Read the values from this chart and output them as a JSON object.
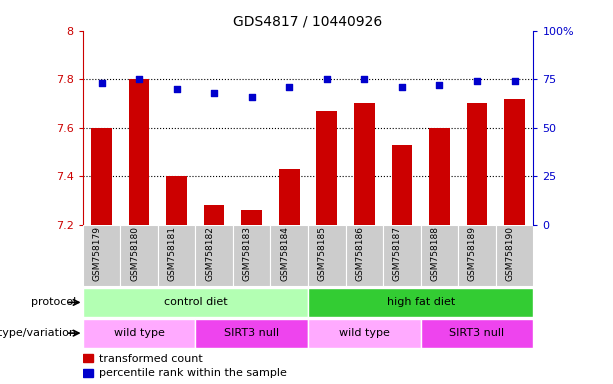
{
  "title": "GDS4817 / 10440926",
  "samples": [
    "GSM758179",
    "GSM758180",
    "GSM758181",
    "GSM758182",
    "GSM758183",
    "GSM758184",
    "GSM758185",
    "GSM758186",
    "GSM758187",
    "GSM758188",
    "GSM758189",
    "GSM758190"
  ],
  "transformed_count": [
    7.6,
    7.8,
    7.4,
    7.28,
    7.26,
    7.43,
    7.67,
    7.7,
    7.53,
    7.6,
    7.7,
    7.72
  ],
  "percentile_rank": [
    73,
    75,
    70,
    68,
    66,
    71,
    75,
    75,
    71,
    72,
    74,
    74
  ],
  "ymin": 7.2,
  "ymax": 8.0,
  "yticks_left": [
    7.2,
    7.4,
    7.6,
    7.8,
    8.0
  ],
  "ytick_labels_left": [
    "7.2",
    "7.4",
    "7.6",
    "7.8",
    "8"
  ],
  "right_yticks": [
    0,
    25,
    50,
    75,
    100
  ],
  "right_ytick_labels": [
    "0",
    "25",
    "50",
    "75",
    "100%"
  ],
  "bar_color": "#cc0000",
  "dot_color": "#0000cc",
  "bar_bottom": 7.2,
  "protocol_groups": [
    {
      "label": "control diet",
      "start": 0,
      "end": 6,
      "color": "#b3ffb3"
    },
    {
      "label": "high fat diet",
      "start": 6,
      "end": 12,
      "color": "#33cc33"
    }
  ],
  "genotype_groups": [
    {
      "label": "wild type",
      "start": 0,
      "end": 3,
      "color": "#ffaaff"
    },
    {
      "label": "SIRT3 null",
      "start": 3,
      "end": 6,
      "color": "#ee44ee"
    },
    {
      "label": "wild type",
      "start": 6,
      "end": 9,
      "color": "#ffaaff"
    },
    {
      "label": "SIRT3 null",
      "start": 9,
      "end": 12,
      "color": "#ee44ee"
    }
  ],
  "legend_items": [
    {
      "label": "transformed count",
      "color": "#cc0000"
    },
    {
      "label": "percentile rank within the sample",
      "color": "#0000cc"
    }
  ],
  "protocol_label": "protocol",
  "genotype_label": "genotype/variation",
  "tick_label_color_left": "#cc0000",
  "tick_label_color_right": "#0000cc",
  "percentile_scale_min": 0,
  "percentile_scale_max": 100,
  "gridline_yticks": [
    7.4,
    7.6,
    7.8
  ]
}
